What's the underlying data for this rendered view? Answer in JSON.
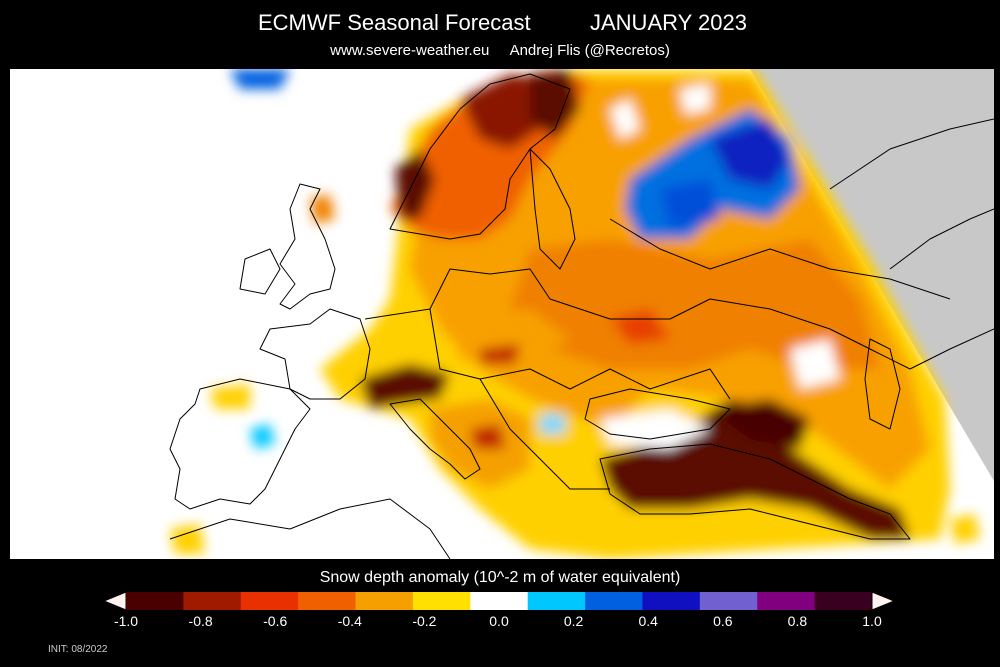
{
  "header": {
    "title_left": "ECMWF Seasonal Forecast",
    "title_right": "JANUARY 2023",
    "site": "www.severe-weather.eu",
    "author": "Andrej Flis (@Recretos)"
  },
  "legend": {
    "title": "Snow depth anomaly (10^-2 m of water equivalent)",
    "ticks": [
      "-1.0",
      "-0.8",
      "-0.6",
      "-0.4",
      "-0.2",
      "0.0",
      "0.2",
      "0.4",
      "0.6",
      "0.8",
      "1.0"
    ],
    "colors": [
      "#4a0000",
      "#a01a00",
      "#e83000",
      "#f06000",
      "#f5a000",
      "#ffe000",
      "#ffffff",
      "#00c8ff",
      "#0060e0",
      "#1010c0",
      "#7060d0",
      "#800080",
      "#3a0020"
    ]
  },
  "footer": {
    "init": "INIT: 08/2022"
  },
  "colors": {
    "background": "#000000",
    "land_no_data": "#ffffff",
    "outside_domain": "#c8c8c8",
    "borders": "#000000"
  }
}
